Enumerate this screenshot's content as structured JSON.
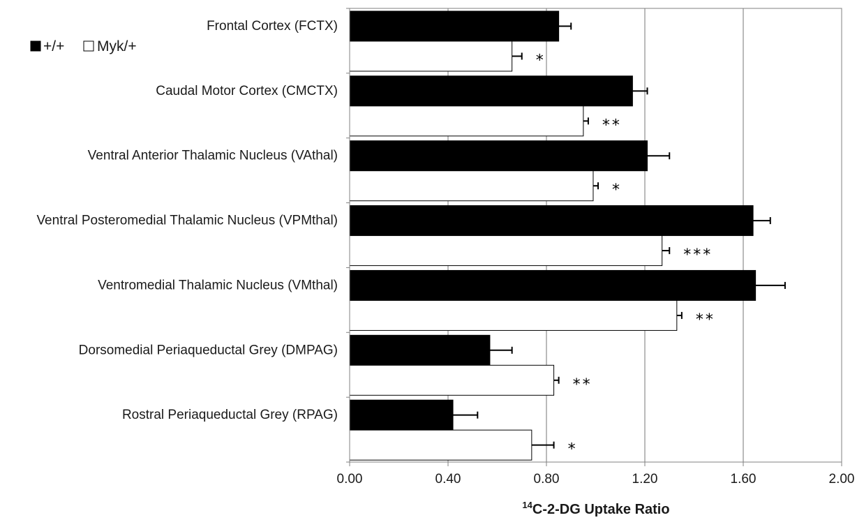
{
  "chart_data": {
    "type": "bar",
    "orientation": "horizontal",
    "categories": [
      "Frontal Cortex (FCTX)",
      "Caudal Motor Cortex (CMCTX)",
      "Ventral Anterior Thalamic Nucleus (VAthal)",
      "Ventral Posteromedial Thalamic Nucleus (VPMthal)",
      "Ventromedial Thalamic Nucleus (VMthal)",
      "Dorsomedial Periaqueductal Grey (DMPAG)",
      "Rostral Periaqueductal Grey (RPAG)"
    ],
    "series": [
      {
        "name": "+/+",
        "color": "#000000",
        "values": [
          0.85,
          1.15,
          1.21,
          1.64,
          1.65,
          0.57,
          0.42
        ],
        "errors": [
          0.05,
          0.06,
          0.09,
          0.07,
          0.12,
          0.09,
          0.1
        ]
      },
      {
        "name": "Myk/+",
        "color": "#ffffff",
        "values": [
          0.66,
          0.95,
          0.99,
          1.27,
          1.33,
          0.83,
          0.74
        ],
        "errors": [
          0.04,
          0.02,
          0.02,
          0.03,
          0.02,
          0.02,
          0.09
        ]
      }
    ],
    "significance": [
      "*",
      "**",
      "*",
      "***",
      "**",
      "**",
      "*"
    ],
    "xlabel_super": "14",
    "xlabel_main": "C-2-DG Uptake Ratio",
    "xlim": [
      0,
      2
    ],
    "xticks": [
      "0.00",
      "0.40",
      "0.80",
      "1.20",
      "1.60",
      "2.00"
    ],
    "grid": "vertical",
    "legend_position": "top-left"
  },
  "legend": {
    "wild_label": "+/+",
    "myk_label": "Myk/+"
  }
}
